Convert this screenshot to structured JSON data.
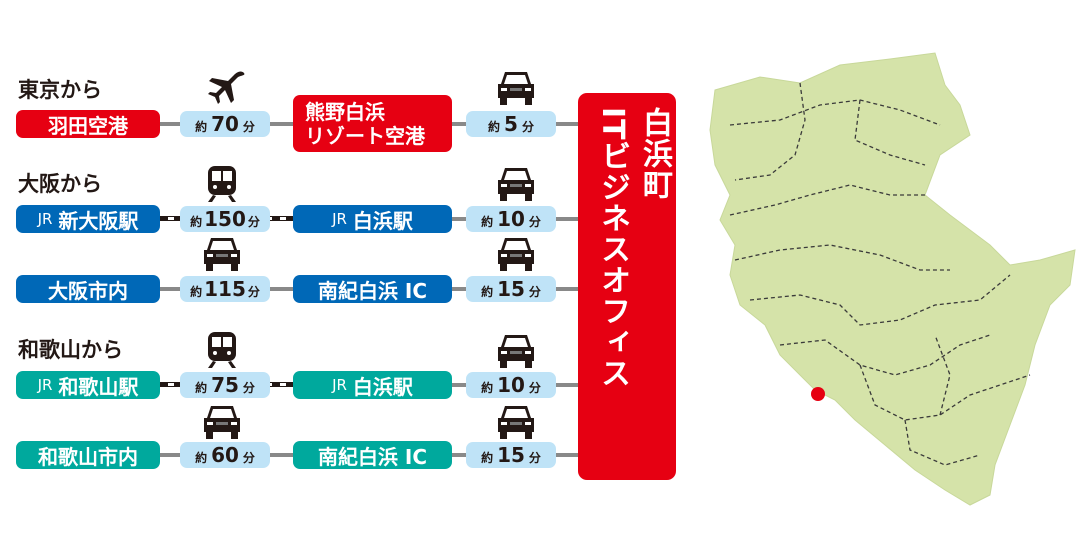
{
  "colors": {
    "tokyo": "#e60012",
    "osaka": "#0068b7",
    "wakayama": "#00a99d",
    "time_pill": "#bfe3f7",
    "map_fill": "#d5e3a9",
    "location_dot": "#e60012"
  },
  "sections": [
    {
      "heading": "東京から"
    },
    {
      "heading": "大阪から"
    },
    {
      "heading": "和歌山から"
    }
  ],
  "routes": [
    {
      "origin": "羽田空港",
      "origin_prefix": "",
      "mode1": "plane-icon",
      "time1": {
        "prefix": "約",
        "value": "70",
        "unit": "分"
      },
      "via_line1": "熊野白浜",
      "via_line2": "リゾート空港",
      "via_prefix": "",
      "mode2": "car-icon",
      "time2": {
        "prefix": "約",
        "value": "5",
        "unit": "分"
      }
    },
    {
      "origin": "新大阪駅",
      "origin_prefix": "JR",
      "mode1": "train-icon",
      "time1": {
        "prefix": "約",
        "value": "150",
        "unit": "分"
      },
      "via": "白浜駅",
      "via_prefix": "JR",
      "mode2": "car-icon",
      "time2": {
        "prefix": "約",
        "value": "10",
        "unit": "分"
      }
    },
    {
      "origin": "大阪市内",
      "origin_prefix": "",
      "mode1": "car-icon",
      "time1": {
        "prefix": "約",
        "value": "115",
        "unit": "分"
      },
      "via": "南紀白浜 IC",
      "via_prefix": "",
      "mode2": "car-icon",
      "time2": {
        "prefix": "約",
        "value": "15",
        "unit": "分"
      }
    },
    {
      "origin": "和歌山駅",
      "origin_prefix": "JR",
      "mode1": "train-icon",
      "time1": {
        "prefix": "約",
        "value": "75",
        "unit": "分"
      },
      "via": "白浜駅",
      "via_prefix": "JR",
      "mode2": "car-icon",
      "time2": {
        "prefix": "約",
        "value": "10",
        "unit": "分"
      }
    },
    {
      "origin": "和歌山市内",
      "origin_prefix": "",
      "mode1": "car-icon",
      "time1": {
        "prefix": "約",
        "value": "60",
        "unit": "分"
      },
      "via": "南紀白浜 IC",
      "via_prefix": "",
      "mode2": "car-icon",
      "time2": {
        "prefix": "約",
        "value": "15",
        "unit": "分"
      }
    }
  ],
  "destination": {
    "line1": "白浜町",
    "line2": "ITビジネスオフィス"
  }
}
